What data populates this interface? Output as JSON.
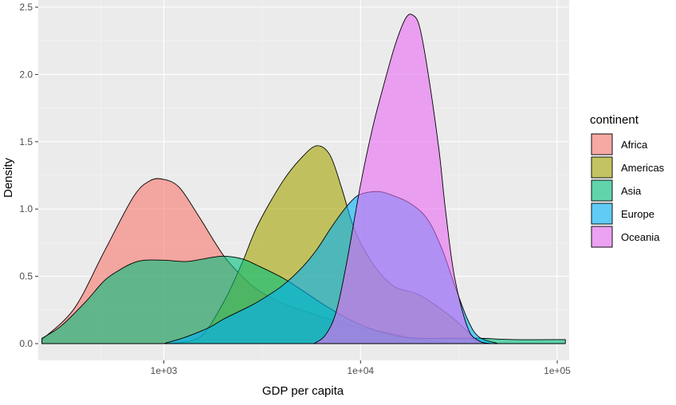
{
  "chart_data": {
    "type": "area",
    "subtype": "density",
    "title": "",
    "xlabel": "GDP per capita",
    "ylabel": "Density",
    "x_scale": "log10",
    "xlim": [
      230,
      115000
    ],
    "ylim": [
      0,
      2.5
    ],
    "x_ticks": [
      {
        "value": 1000,
        "label": "1e+03"
      },
      {
        "value": 10000,
        "label": "1e+04"
      },
      {
        "value": 100000,
        "label": "1e+05"
      }
    ],
    "y_ticks": [
      {
        "value": 0,
        "label": "0.0"
      },
      {
        "value": 0.5,
        "label": "0.5"
      },
      {
        "value": 1.0,
        "label": "1.0"
      },
      {
        "value": 1.5,
        "label": "1.5"
      },
      {
        "value": 2.0,
        "label": "2.0"
      },
      {
        "value": 2.5,
        "label": "2.5"
      }
    ],
    "grid": true,
    "legend_title": "continent",
    "legend_position": "right",
    "series": [
      {
        "name": "Africa",
        "color": "#F8766D",
        "x": [
          240,
          350,
          500,
          700,
          850,
          1000,
          1200,
          1500,
          2000,
          2500,
          3000,
          4000,
          5000,
          7000,
          10000,
          15000,
          20000,
          30000
        ],
        "values": [
          0.03,
          0.26,
          0.69,
          1.09,
          1.21,
          1.22,
          1.16,
          0.95,
          0.66,
          0.5,
          0.4,
          0.3,
          0.25,
          0.18,
          0.12,
          0.07,
          0.03,
          0.0
        ]
      },
      {
        "name": "Americas",
        "color": "#A3A500",
        "x": [
          1000,
          1500,
          2000,
          2500,
          3000,
          4000,
          5000,
          6000,
          7000,
          8000,
          9000,
          10000,
          12000,
          15000,
          20000,
          30000,
          40000
        ],
        "values": [
          0.0,
          0.04,
          0.3,
          0.6,
          0.88,
          1.2,
          1.38,
          1.47,
          1.4,
          1.16,
          0.91,
          0.75,
          0.56,
          0.42,
          0.36,
          0.18,
          0.0
        ]
      },
      {
        "name": "Asia",
        "color": "#00BF7D",
        "x": [
          240,
          300,
          400,
          500,
          600,
          700,
          800,
          1000,
          1300,
          1600,
          2000,
          2500,
          3000,
          4000,
          5000,
          7000,
          10000,
          15000,
          20000,
          30000,
          40000,
          60000,
          110000
        ],
        "values": [
          0.04,
          0.13,
          0.31,
          0.47,
          0.55,
          0.6,
          0.62,
          0.62,
          0.61,
          0.63,
          0.65,
          0.63,
          0.58,
          0.49,
          0.4,
          0.26,
          0.14,
          0.06,
          0.04,
          0.04,
          0.04,
          0.03,
          0.03
        ]
      },
      {
        "name": "Europe",
        "color": "#00B0F6",
        "x": [
          1000,
          1300,
          1700,
          2000,
          2500,
          3000,
          4000,
          5000,
          6000,
          7000,
          8000,
          9000,
          10000,
          12000,
          14000,
          18000,
          22000,
          26000,
          30000,
          35000,
          40000,
          50000
        ],
        "values": [
          0.0,
          0.05,
          0.12,
          0.18,
          0.25,
          0.31,
          0.43,
          0.56,
          0.7,
          0.85,
          0.97,
          1.06,
          1.11,
          1.13,
          1.11,
          1.04,
          0.92,
          0.7,
          0.44,
          0.18,
          0.05,
          0.0
        ]
      },
      {
        "name": "Oceania",
        "color": "#E76BF3",
        "x": [
          5800,
          6600,
          7500,
          8500,
          10000,
          11500,
          13000,
          15000,
          17000,
          18500,
          20000,
          22000,
          25000,
          27000,
          30000,
          35000,
          40000,
          46000
        ],
        "values": [
          0.0,
          0.06,
          0.23,
          0.6,
          1.18,
          1.6,
          1.9,
          2.22,
          2.42,
          2.44,
          2.35,
          2.02,
          1.45,
          1.0,
          0.5,
          0.12,
          0.02,
          0.0
        ]
      }
    ]
  }
}
